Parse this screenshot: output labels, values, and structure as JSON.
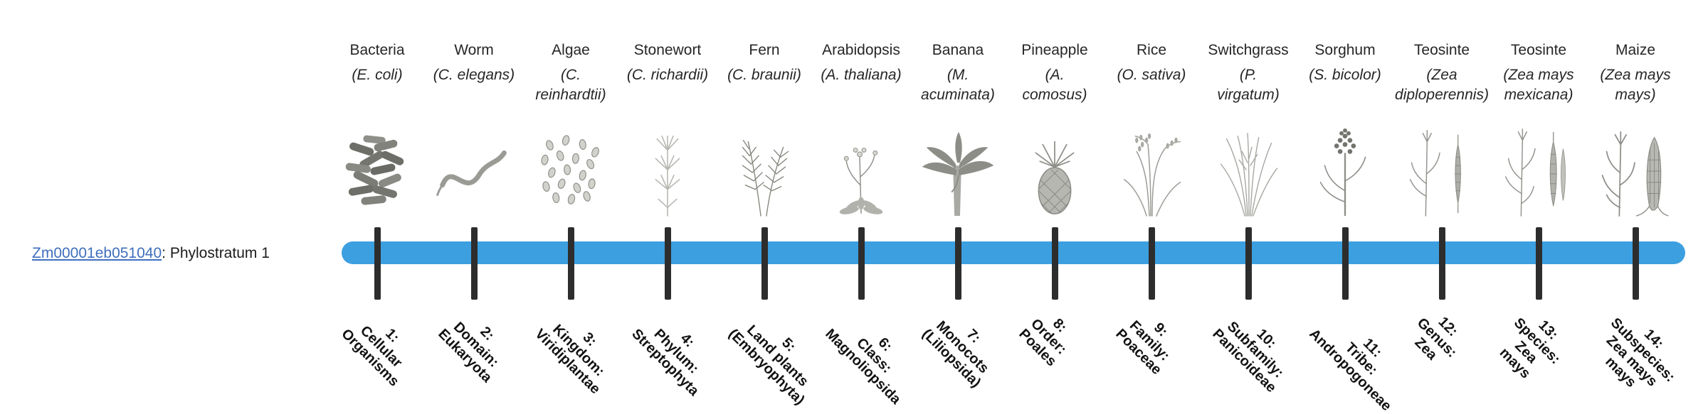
{
  "gene": {
    "id": "Zm00001eb051040",
    "label_suffix": ": Phylostratum 1"
  },
  "timeline": {
    "bar_color": "#3C9FE0",
    "tick_color": "#2D2D2D",
    "link_color": "#3E6FBE"
  },
  "organisms": [
    {
      "name": "Bacteria",
      "sci": "(E. coli)",
      "icon": "bacteria",
      "stratum": "1:\nCellular\nOrganisms"
    },
    {
      "name": "Worm",
      "sci": "(C. elegans)",
      "icon": "worm",
      "stratum": "2:\nDomain:\nEukaryota"
    },
    {
      "name": "Algae",
      "sci": "(C.\nreinhardtii)",
      "icon": "algae",
      "stratum": "3:\nKingdom:\nViridiplantae"
    },
    {
      "name": "Stonewort",
      "sci": "(C. richardii)",
      "icon": "stonewort",
      "stratum": "4:\nPhylum:\nStreptophyta"
    },
    {
      "name": "Fern",
      "sci": "(C. braunii)",
      "icon": "fern",
      "stratum": "5:\nLand plants\n(Embryophyta)"
    },
    {
      "name": "Arabidopsis",
      "sci": "(A. thaliana)",
      "icon": "arabidopsis",
      "stratum": "6:\nClass:\nMagnoliopsida"
    },
    {
      "name": "Banana",
      "sci": "(M.\nacuminata)",
      "icon": "banana",
      "stratum": "7:\nMonocots\n(Liliopsida)"
    },
    {
      "name": "Pineapple",
      "sci": "(A.\ncomosus)",
      "icon": "pineapple",
      "stratum": "8:\nOrder:\nPoales"
    },
    {
      "name": "Rice",
      "sci": "(O. sativa)",
      "icon": "rice",
      "stratum": "9:\nFamily:\nPoaceae"
    },
    {
      "name": "Switchgrass",
      "sci": "(P.\nvirgatum)",
      "icon": "switchgrass",
      "stratum": "10:\nSubfamily:\nPanicoideae"
    },
    {
      "name": "Sorghum",
      "sci": "(S. bicolor)",
      "icon": "sorghum",
      "stratum": "11:\nTribe:\nAndropogoneae"
    },
    {
      "name": "Teosinte",
      "sci": "(Zea\ndiploperennis)",
      "icon": "teosinte-diplo",
      "stratum": "12:\nGenus:\nZea"
    },
    {
      "name": "Teosinte",
      "sci": "(Zea mays\nmexicana)",
      "icon": "teosinte-mex",
      "stratum": "13:\nSpecies:\nZea\nmays"
    },
    {
      "name": "Maize",
      "sci": "(Zea mays\nmays)",
      "icon": "maize",
      "stratum": "14:\nSubspecies:\nZea mays\nmays"
    }
  ]
}
